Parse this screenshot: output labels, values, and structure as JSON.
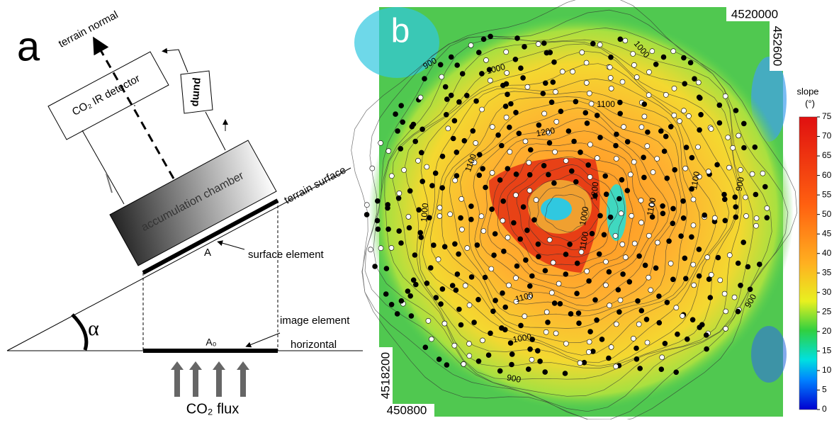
{
  "panel_a": {
    "label": "a",
    "terrain_normal": "terrain normal",
    "detector": "CO₂ IR detector",
    "pump": "pump",
    "chamber": "accumulation chamber",
    "terrain_surface": "terrain surface",
    "area": "A",
    "surface_element": "surface element",
    "angle": "α",
    "image_element": "image element",
    "area0": "A₀",
    "horizontal": "horizontal",
    "flux": "CO₂ flux"
  },
  "panel_b": {
    "label": "b",
    "coord_top_right": "4520000",
    "coord_right": "452600",
    "coord_left": "4518200",
    "coord_bottom_left": "450800",
    "contour_labels": [
      "900",
      "1000",
      "1100",
      "1200",
      "1100",
      "1000",
      "1000",
      "1200",
      "1100",
      "1100",
      "1100",
      "900",
      "1100",
      "1000",
      "900",
      "900",
      "1000"
    ],
    "colorbar": {
      "title": "slope",
      "unit": "(°)",
      "min": 0,
      "max": 75,
      "ticks": [
        0,
        5,
        10,
        15,
        20,
        25,
        30,
        35,
        40,
        45,
        50,
        55,
        60,
        65,
        70,
        75
      ]
    }
  }
}
